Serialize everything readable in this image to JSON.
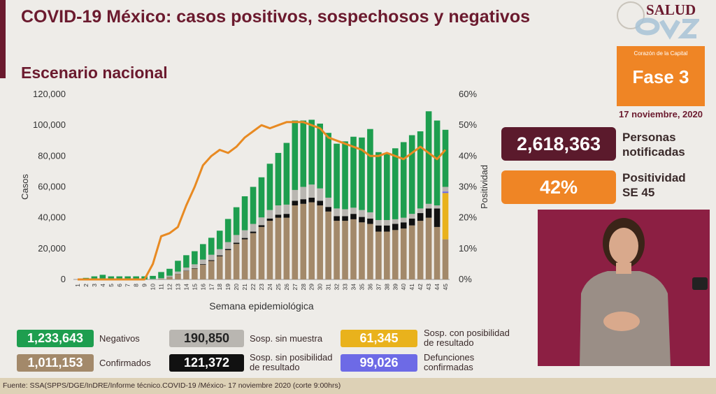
{
  "header": {
    "title": "COVID-19 México: casos positivos, sospechosos y negativos",
    "subtitle": "Escenario nacional"
  },
  "logo": {
    "text": "SALUD"
  },
  "phase": {
    "caption": "Corazón de la Capital",
    "label": "Fase 3"
  },
  "date": "17 noviembre, 2020",
  "kpis": {
    "notified_value": "2,618,363",
    "notified_label_1": "Personas",
    "notified_label_2": "notificadas",
    "positivity_value": "42%",
    "positivity_label_1": "Positividad",
    "positivity_label_2": "SE 45"
  },
  "legend": {
    "negativos_value": "1,233,643",
    "negativos_label": "Negativos",
    "sin_muestra_value": "190,850",
    "sin_muestra_label": "Sosp. sin muestra",
    "con_posibilidad_value": "61,345",
    "con_posibilidad_label_1": "Sosp. con posibilidad",
    "con_posibilidad_label_2": "de resultado",
    "confirmados_value": "1,011,153",
    "confirmados_label": "Confirmados",
    "sin_posibilidad_value": "121,372",
    "sin_posibilidad_label_1": "Sosp. sin posibilidad",
    "sin_posibilidad_label_2": "de resultado",
    "defunciones_value": "99,026",
    "defunciones_label_1": "Defunciones",
    "defunciones_label_2": "confirmadas"
  },
  "colors": {
    "negativos": "#1e9e4f",
    "sin_muestra": "#b9b6b1",
    "con_posibilidad": "#e9b21c",
    "confirmados": "#a3896a",
    "sin_posibilidad": "#111111",
    "defunciones": "#6d6ae6",
    "positivity_line": "#e88a22",
    "brand": "#6b1a2e"
  },
  "footer": "Fuente: SSA(SPPS/DGE/InDRE/Informe técnico.COVID-19 /México- 17 noviembre 2020 (corte 9:00hrs)",
  "chart_data": {
    "type": "bar",
    "stacked": true,
    "xlabel": "Semana epidemiológica",
    "ylabel": "Casos",
    "y2label": "Positividad",
    "ylim": [
      0,
      120000
    ],
    "y2lim": [
      0,
      60
    ],
    "yticks": [
      "0",
      "20,000",
      "40,000",
      "60,000",
      "80,000",
      "100,000",
      "120,000"
    ],
    "y2ticks": [
      "0%",
      "10%",
      "20%",
      "30%",
      "40%",
      "50%",
      "60%"
    ],
    "categories": [
      "1",
      "2",
      "3",
      "4",
      "5",
      "6",
      "7",
      "8",
      "9",
      "10",
      "11",
      "12",
      "13",
      "14",
      "15",
      "16",
      "17",
      "18",
      "19",
      "20",
      "21",
      "22",
      "23",
      "24",
      "25",
      "26",
      "27",
      "28",
      "29",
      "30",
      "31",
      "32",
      "33",
      "34",
      "35",
      "36",
      "37",
      "38",
      "39",
      "40",
      "41",
      "42",
      "43",
      "44",
      "45"
    ],
    "series": [
      {
        "name": "Confirmados",
        "color": "#a3896a",
        "values": [
          0,
          0,
          0,
          0,
          0,
          0,
          0,
          0,
          0,
          100,
          400,
          1500,
          3500,
          5500,
          7000,
          9500,
          12000,
          15000,
          19000,
          23000,
          26000,
          30000,
          34000,
          38000,
          40000,
          40000,
          48000,
          49000,
          50000,
          48000,
          44000,
          38000,
          38000,
          39000,
          37000,
          36000,
          31000,
          31000,
          32000,
          33000,
          35000,
          38000,
          40000,
          34000,
          26000
        ]
      },
      {
        "name": "Sosp. sin posibilidad de resultado",
        "color": "#111111",
        "values": [
          0,
          0,
          0,
          0,
          0,
          0,
          0,
          0,
          0,
          0,
          0,
          100,
          100,
          200,
          300,
          400,
          500,
          600,
          700,
          800,
          900,
          1000,
          1200,
          1500,
          2000,
          2500,
          3000,
          3000,
          3000,
          3000,
          3000,
          3000,
          3000,
          3500,
          3500,
          3500,
          4000,
          4000,
          4000,
          4000,
          4500,
          5000,
          6000,
          12000,
          0
        ]
      },
      {
        "name": "Sosp. con posibilidad de resultado",
        "color": "#e9b21c",
        "values": [
          0,
          0,
          0,
          0,
          0,
          0,
          0,
          0,
          0,
          0,
          0,
          0,
          0,
          0,
          0,
          0,
          0,
          0,
          0,
          0,
          0,
          0,
          0,
          0,
          0,
          0,
          0,
          0,
          0,
          0,
          0,
          0,
          0,
          0,
          0,
          0,
          0,
          0,
          0,
          0,
          0,
          0,
          0,
          0,
          30000
        ]
      },
      {
        "name": "Defunciones confirmadas",
        "color": "#6d6ae6",
        "values": [
          0,
          0,
          0,
          0,
          0,
          0,
          0,
          0,
          0,
          0,
          0,
          0,
          0,
          0,
          0,
          0,
          0,
          0,
          0,
          0,
          0,
          0,
          0,
          0,
          0,
          0,
          0,
          0,
          0,
          0,
          0,
          0,
          0,
          0,
          0,
          0,
          0,
          0,
          0,
          0,
          0,
          0,
          0,
          0,
          1000
        ]
      },
      {
        "name": "Sosp. sin muestra",
        "color": "#b9b6b1",
        "values": [
          0,
          0,
          0,
          0,
          0,
          0,
          0,
          0,
          0,
          200,
          400,
          800,
          1500,
          2000,
          2500,
          3000,
          3500,
          4000,
          4500,
          5000,
          5000,
          5000,
          5000,
          5500,
          6000,
          6000,
          7000,
          8000,
          8500,
          8000,
          6000,
          5000,
          4500,
          4000,
          4500,
          4000,
          3500,
          3500,
          3000,
          3000,
          3000,
          3000,
          3000,
          2000,
          3000
        ]
      },
      {
        "name": "Negativos",
        "color": "#1e9e4f",
        "values": [
          0,
          1000,
          2000,
          3000,
          2000,
          2000,
          2000,
          2000,
          2000,
          2000,
          4000,
          4500,
          7000,
          8000,
          8500,
          10000,
          11000,
          12000,
          15000,
          18000,
          22000,
          24000,
          26000,
          30000,
          34000,
          40000,
          45000,
          43000,
          42000,
          42000,
          42000,
          42000,
          44000,
          46000,
          47000,
          54000,
          44000,
          43000,
          46000,
          49000,
          51000,
          50000,
          60000,
          55000,
          37000
        ]
      }
    ],
    "positivity": [
      0,
      0,
      0,
      0,
      0,
      0,
      0,
      0,
      0,
      5,
      14,
      15,
      17,
      24,
      30,
      37,
      40,
      42,
      41,
      43,
      46,
      48,
      50,
      49,
      50,
      51,
      51,
      51,
      50,
      49,
      46,
      45,
      44,
      43,
      42,
      40,
      40,
      41,
      40,
      39,
      41,
      43,
      41,
      39,
      42
    ]
  }
}
